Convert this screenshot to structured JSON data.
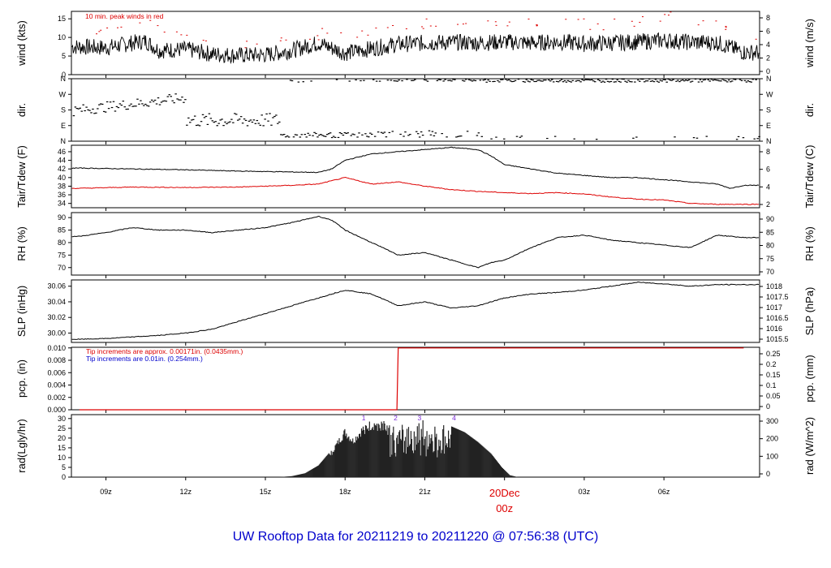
{
  "title": "UW Rooftop Data for 20211219  to  20211220 @ 07:56:38  (UTC)",
  "colors": {
    "title": "#0000cc",
    "red": "#dd0000",
    "blue": "#0000cc",
    "purple": "#7a2bd6",
    "line": "#000000"
  },
  "x_axis": {
    "ticks": [
      {
        "label": "09z",
        "hour": 9
      },
      {
        "label": "12z",
        "hour": 12
      },
      {
        "label": "15z",
        "hour": 15
      },
      {
        "label": "18z",
        "hour": 18
      },
      {
        "label": "21z",
        "hour": 21
      },
      {
        "label": "03z",
        "hour": 27
      },
      {
        "label": "06z",
        "hour": 30
      }
    ],
    "date_label": "20Dec",
    "date_label_hour": "00z",
    "date_hour": 24
  },
  "chart_data": [
    {
      "type": "line",
      "id": "wind",
      "ylabel": "wind (kts)",
      "y2label": "wind (m/s)",
      "yticks": [
        0,
        5,
        10,
        15
      ],
      "y2ticks": [
        0,
        2,
        4,
        6,
        8
      ],
      "ylim": [
        0,
        17
      ],
      "annotation": "10 min. peak winds in red",
      "series": [
        {
          "values": [
            [
              8,
              7.5
            ],
            [
              9,
              7.2
            ],
            [
              10,
              8.5
            ],
            [
              10.5,
              9
            ],
            [
              11,
              6.5
            ],
            [
              12,
              6.8
            ],
            [
              13,
              5.5
            ],
            [
              14,
              5.2
            ],
            [
              15,
              5.3
            ],
            [
              16,
              6.5
            ],
            [
              17,
              8.5
            ],
            [
              18,
              5.8
            ],
            [
              19,
              7
            ],
            [
              20,
              8.2
            ],
            [
              21,
              8.5
            ],
            [
              22,
              8.7
            ],
            [
              23,
              8.5
            ],
            [
              24,
              8.8
            ],
            [
              25,
              8.5
            ],
            [
              26,
              8.8
            ],
            [
              27,
              8.3
            ],
            [
              28,
              8.5
            ],
            [
              29,
              8.8
            ],
            [
              30,
              9.2
            ],
            [
              31,
              8.7
            ],
            [
              32,
              8.6
            ],
            [
              33,
              6.0
            ]
          ]
        }
      ],
      "peaks": [
        [
          8,
          11
        ],
        [
          9,
          12
        ],
        [
          10,
          14
        ],
        [
          11,
          11
        ],
        [
          12,
          10
        ],
        [
          14,
          8
        ],
        [
          15,
          9
        ],
        [
          16,
          10
        ],
        [
          17,
          12
        ],
        [
          18,
          11
        ],
        [
          19,
          13
        ],
        [
          20,
          13
        ],
        [
          21,
          14
        ],
        [
          22,
          14
        ],
        [
          23,
          14
        ],
        [
          24,
          14
        ],
        [
          25,
          14
        ],
        [
          26,
          14
        ],
        [
          27,
          13
        ],
        [
          28,
          14
        ],
        [
          29,
          15
        ],
        [
          30,
          16
        ],
        [
          31,
          14
        ],
        [
          32,
          13
        ],
        [
          33,
          10
        ]
      ]
    },
    {
      "type": "scatter",
      "id": "dir",
      "ylabel": "dir.",
      "y2label": "dir.",
      "yticks": [
        "N",
        "E",
        "S",
        "W",
        "N"
      ],
      "y2ticks": [
        "N",
        "E",
        "S",
        "W",
        "N"
      ],
      "ylim": [
        0,
        360
      ]
    },
    {
      "type": "line",
      "id": "temp",
      "ylabel": "Tair/Tdew (F)",
      "y2label": "Tair/Tdew (C)",
      "yticks": [
        34,
        36,
        38,
        40,
        42,
        44,
        46
      ],
      "y2ticks": [
        2,
        4,
        6,
        8
      ],
      "ylim": [
        33,
        47.5
      ],
      "series": [
        {
          "color": "#000000",
          "values": [
            [
              8,
              42.2
            ],
            [
              10,
              42
            ],
            [
              12,
              41.8
            ],
            [
              14,
              41.5
            ],
            [
              16,
              41.3
            ],
            [
              17,
              41.2
            ],
            [
              17.5,
              42
            ],
            [
              18,
              44
            ],
            [
              19,
              45.5
            ],
            [
              20,
              46
            ],
            [
              21,
              46.5
            ],
            [
              22,
              47
            ],
            [
              23,
              46.5
            ],
            [
              23.5,
              45
            ],
            [
              24,
              43
            ],
            [
              25,
              42
            ],
            [
              26,
              41
            ],
            [
              27,
              40.5
            ],
            [
              28,
              40
            ],
            [
              29,
              40
            ],
            [
              30,
              39.5
            ],
            [
              31,
              39
            ],
            [
              32,
              38.5
            ],
            [
              32.5,
              37.5
            ],
            [
              33,
              38.2
            ]
          ]
        },
        {
          "color": "#dd0000",
          "values": [
            [
              8,
              37.5
            ],
            [
              10,
              37.8
            ],
            [
              12,
              37.7
            ],
            [
              14,
              37.8
            ],
            [
              16,
              38.2
            ],
            [
              17,
              38.5
            ],
            [
              18,
              40
            ],
            [
              19,
              38.5
            ],
            [
              20,
              39
            ],
            [
              21,
              38
            ],
            [
              22,
              37.2
            ],
            [
              23,
              36.8
            ],
            [
              24,
              36.5
            ],
            [
              25,
              36.3
            ],
            [
              26,
              36.5
            ],
            [
              27,
              36.2
            ],
            [
              28,
              35.5
            ],
            [
              29,
              35
            ],
            [
              30,
              34.8
            ],
            [
              31,
              34
            ],
            [
              32,
              33.8
            ],
            [
              33,
              33.8
            ]
          ]
        }
      ]
    },
    {
      "type": "line",
      "id": "rh",
      "ylabel": "RH (%)",
      "y2label": "RH (%)",
      "yticks": [
        70,
        75,
        80,
        85,
        90
      ],
      "y2ticks": [
        70,
        75,
        80,
        85,
        90
      ],
      "ylim": [
        67,
        92
      ],
      "series": [
        {
          "values": [
            [
              8,
              82.5
            ],
            [
              9,
              84
            ],
            [
              10,
              86
            ],
            [
              11,
              85
            ],
            [
              12,
              85
            ],
            [
              13,
              84
            ],
            [
              14,
              85
            ],
            [
              15,
              86
            ],
            [
              16,
              88
            ],
            [
              17,
              90.5
            ],
            [
              17.5,
              89
            ],
            [
              18,
              85
            ],
            [
              19,
              80
            ],
            [
              20,
              75
            ],
            [
              21,
              76
            ],
            [
              22,
              73
            ],
            [
              23,
              70
            ],
            [
              23.5,
              72
            ],
            [
              24,
              73
            ],
            [
              25,
              78
            ],
            [
              26,
              82
            ],
            [
              27,
              83
            ],
            [
              28,
              81
            ],
            [
              29,
              80
            ],
            [
              30,
              79
            ],
            [
              31,
              78
            ],
            [
              32,
              83
            ],
            [
              33,
              82
            ]
          ]
        }
      ]
    },
    {
      "type": "line",
      "id": "slp",
      "ylabel": "SLP (inHg)",
      "y2label": "SLP (hPa)",
      "yticks": [
        30.0,
        30.02,
        30.04,
        30.06
      ],
      "yticklabels": [
        "30.00",
        "30.02",
        "30.04",
        "30.06"
      ],
      "y2ticks": [
        1015.5,
        1016,
        1016.5,
        1017,
        1017.5,
        1018
      ],
      "ylim": [
        29.988,
        30.068
      ],
      "series": [
        {
          "values": [
            [
              8,
              29.992
            ],
            [
              9,
              29.993
            ],
            [
              10,
              29.995
            ],
            [
              11,
              29.997
            ],
            [
              12,
              30.0
            ],
            [
              13,
              30.005
            ],
            [
              14,
              30.015
            ],
            [
              15,
              30.025
            ],
            [
              16,
              30.035
            ],
            [
              17,
              30.045
            ],
            [
              18,
              30.055
            ],
            [
              19,
              30.05
            ],
            [
              20,
              30.035
            ],
            [
              21,
              30.04
            ],
            [
              22,
              30.032
            ],
            [
              23,
              30.035
            ],
            [
              24,
              30.045
            ],
            [
              25,
              30.05
            ],
            [
              26,
              30.052
            ],
            [
              27,
              30.055
            ],
            [
              28,
              30.06
            ],
            [
              29,
              30.065
            ],
            [
              30,
              30.063
            ],
            [
              31,
              30.06
            ],
            [
              32,
              30.062
            ],
            [
              33,
              30.062
            ]
          ]
        }
      ]
    },
    {
      "type": "line",
      "id": "pcp",
      "ylabel": "pcp. (in)",
      "y2label": "pcp. (mm)",
      "yticks": [
        0.0,
        0.002,
        0.004,
        0.006,
        0.008,
        0.01
      ],
      "yticklabels": [
        "0.000",
        "0.002",
        "0.004",
        "0.006",
        "0.008",
        "0.010"
      ],
      "y2ticks": [
        0,
        0.05,
        0.1,
        0.15,
        0.2,
        0.25
      ],
      "y2ticklabels": [
        "0",
        "0.05",
        "0.1",
        "0.15",
        "0.2",
        "0.25"
      ],
      "ylim": [
        0,
        0.0101
      ],
      "annotations": [
        {
          "text": "Tip increments are approx. 0.00171in. (0.0435mm.)",
          "color": "#dd0000"
        },
        {
          "text": "Tip increments are 0.01in. (0.254mm.)",
          "color": "#0000cc"
        }
      ],
      "series": [
        {
          "color": "#dd0000",
          "values": [
            [
              8,
              0
            ],
            [
              19.95,
              0
            ],
            [
              20,
              0.01
            ],
            [
              33,
              0.01
            ]
          ]
        }
      ]
    },
    {
      "type": "area",
      "id": "rad",
      "ylabel": "rad(Lgly/hr)",
      "y2label": "rad (W/m^2)",
      "yticks": [
        0,
        5,
        10,
        15,
        20,
        25,
        30
      ],
      "y2ticks": [
        0,
        100,
        200,
        300
      ],
      "ylim": [
        0,
        32
      ],
      "markers": [
        {
          "label": "1",
          "hour": 18.7
        },
        {
          "label": "2",
          "hour": 19.9
        },
        {
          "label": "3",
          "hour": 20.8
        },
        {
          "label": "4",
          "hour": 22.1
        }
      ],
      "envelope": [
        [
          15.5,
          0
        ],
        [
          16,
          0.5
        ],
        [
          16.5,
          2
        ],
        [
          17,
          6
        ],
        [
          17.5,
          14
        ],
        [
          18,
          25
        ],
        [
          18.3,
          20
        ],
        [
          18.7,
          27
        ],
        [
          19,
          29
        ],
        [
          19.5,
          30
        ],
        [
          20,
          25
        ],
        [
          20.5,
          31
        ],
        [
          21,
          30
        ],
        [
          21.5,
          28
        ],
        [
          22,
          26
        ],
        [
          22.5,
          23
        ],
        [
          23,
          18
        ],
        [
          23.5,
          12
        ],
        [
          23.9,
          5
        ],
        [
          24.2,
          1
        ],
        [
          24.5,
          0
        ]
      ]
    }
  ]
}
